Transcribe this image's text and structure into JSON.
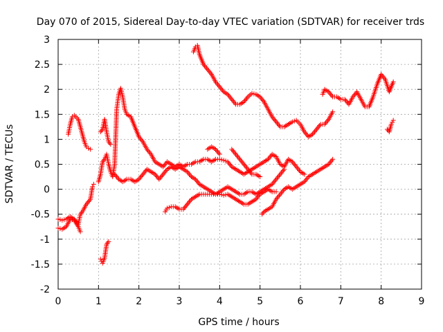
{
  "chart_data": {
    "type": "scatter",
    "title": "Day 070 of 2015, Sidereal Day-to-day VTEC variation (SDTVAR) for receiver trds",
    "xlabel": "GPS time / hours",
    "ylabel": "SDTVAR / TECUs",
    "xlim": [
      0,
      9
    ],
    "ylim": [
      -2,
      3
    ],
    "x_ticks": [
      0,
      1,
      2,
      3,
      4,
      5,
      6,
      7,
      8,
      9
    ],
    "y_ticks": [
      -2,
      -1.5,
      -1,
      -0.5,
      0,
      0.5,
      1,
      1.5,
      2,
      2.5,
      3
    ],
    "grid": true,
    "marker": "+",
    "color": "#ff0000",
    "series": [
      {
        "points": [
          [
            0.0,
            -0.6
          ],
          [
            0.1,
            -0.62
          ],
          [
            0.2,
            -0.6
          ],
          [
            0.3,
            -0.55
          ],
          [
            0.4,
            -0.6
          ],
          [
            0.5,
            -0.7
          ],
          [
            0.55,
            -0.5
          ],
          [
            0.6,
            -0.45
          ],
          [
            0.7,
            -0.3
          ],
          [
            0.75,
            -0.25
          ],
          [
            0.8,
            -0.2
          ],
          [
            0.85,
            0.05
          ],
          [
            0.88,
            0.1
          ]
        ]
      },
      {
        "points": [
          [
            0.0,
            -0.78
          ],
          [
            0.1,
            -0.8
          ],
          [
            0.2,
            -0.75
          ],
          [
            0.3,
            -0.6
          ],
          [
            0.4,
            -0.62
          ],
          [
            0.5,
            -0.75
          ],
          [
            0.55,
            -0.85
          ]
        ]
      },
      {
        "points": [
          [
            0.25,
            1.1
          ],
          [
            0.3,
            1.3
          ],
          [
            0.35,
            1.45
          ],
          [
            0.4,
            1.48
          ],
          [
            0.5,
            1.4
          ],
          [
            0.55,
            1.25
          ],
          [
            0.6,
            1.1
          ],
          [
            0.65,
            0.95
          ],
          [
            0.7,
            0.85
          ],
          [
            0.75,
            0.82
          ],
          [
            0.8,
            0.8
          ]
        ]
      },
      {
        "points": [
          [
            1.05,
            -1.4
          ],
          [
            1.1,
            -1.48
          ],
          [
            1.15,
            -1.38
          ],
          [
            1.2,
            -1.1
          ],
          [
            1.25,
            -1.05
          ]
        ]
      },
      {
        "points": [
          [
            1.05,
            1.15
          ],
          [
            1.1,
            1.2
          ],
          [
            1.15,
            1.4
          ],
          [
            1.2,
            1.15
          ],
          [
            1.25,
            0.95
          ],
          [
            1.3,
            0.9
          ]
        ]
      },
      {
        "points": [
          [
            1.0,
            0.15
          ],
          [
            1.05,
            0.3
          ],
          [
            1.1,
            0.55
          ],
          [
            1.15,
            0.6
          ],
          [
            1.2,
            0.7
          ],
          [
            1.25,
            0.5
          ],
          [
            1.3,
            0.35
          ],
          [
            1.35,
            0.25
          ],
          [
            1.4,
            0.5
          ],
          [
            1.45,
            1.6
          ],
          [
            1.5,
            1.9
          ],
          [
            1.55,
            2.02
          ],
          [
            1.6,
            1.85
          ],
          [
            1.65,
            1.6
          ],
          [
            1.7,
            1.5
          ],
          [
            1.8,
            1.45
          ],
          [
            1.9,
            1.25
          ],
          [
            2.0,
            1.05
          ],
          [
            2.1,
            0.95
          ],
          [
            2.2,
            0.8
          ],
          [
            2.3,
            0.7
          ],
          [
            2.4,
            0.55
          ],
          [
            2.5,
            0.5
          ],
          [
            2.6,
            0.45
          ],
          [
            2.7,
            0.55
          ],
          [
            2.8,
            0.5
          ],
          [
            2.9,
            0.45
          ],
          [
            3.0,
            0.5
          ],
          [
            3.1,
            0.45
          ],
          [
            3.2,
            0.5
          ],
          [
            3.3,
            0.5
          ],
          [
            3.4,
            0.55
          ],
          [
            3.5,
            0.55
          ],
          [
            3.6,
            0.6
          ],
          [
            3.7,
            0.6
          ],
          [
            3.8,
            0.55
          ],
          [
            3.9,
            0.6
          ],
          [
            4.0,
            0.6
          ],
          [
            4.1,
            0.58
          ],
          [
            4.2,
            0.55
          ],
          [
            4.3,
            0.45
          ],
          [
            4.4,
            0.4
          ],
          [
            4.5,
            0.35
          ],
          [
            4.6,
            0.3
          ],
          [
            4.7,
            0.35
          ],
          [
            4.8,
            0.4
          ],
          [
            4.9,
            0.45
          ],
          [
            5.0,
            0.5
          ],
          [
            5.1,
            0.55
          ],
          [
            5.2,
            0.6
          ],
          [
            5.3,
            0.7
          ],
          [
            5.4,
            0.65
          ],
          [
            5.5,
            0.5
          ],
          [
            5.6,
            0.45
          ],
          [
            5.7,
            0.6
          ],
          [
            5.8,
            0.55
          ],
          [
            5.9,
            0.45
          ],
          [
            6.0,
            0.35
          ],
          [
            6.1,
            0.3
          ]
        ]
      },
      {
        "points": [
          [
            1.4,
            0.3
          ],
          [
            1.5,
            0.2
          ],
          [
            1.6,
            0.15
          ],
          [
            1.7,
            0.2
          ],
          [
            1.8,
            0.2
          ],
          [
            1.9,
            0.15
          ],
          [
            2.0,
            0.2
          ],
          [
            2.1,
            0.3
          ],
          [
            2.2,
            0.4
          ],
          [
            2.3,
            0.35
          ],
          [
            2.4,
            0.3
          ],
          [
            2.5,
            0.2
          ],
          [
            2.6,
            0.3
          ],
          [
            2.7,
            0.4
          ],
          [
            2.8,
            0.45
          ],
          [
            2.9,
            0.4
          ],
          [
            3.0,
            0.45
          ],
          [
            3.1,
            0.4
          ],
          [
            3.2,
            0.35
          ],
          [
            3.3,
            0.25
          ],
          [
            3.4,
            0.2
          ],
          [
            3.5,
            0.1
          ],
          [
            3.6,
            0.05
          ],
          [
            3.7,
            0.0
          ],
          [
            3.8,
            -0.05
          ],
          [
            3.9,
            -0.1
          ],
          [
            4.0,
            -0.05
          ],
          [
            4.1,
            0.0
          ],
          [
            4.2,
            0.05
          ],
          [
            4.3,
            0.0
          ],
          [
            4.4,
            -0.05
          ],
          [
            4.5,
            -0.1
          ],
          [
            4.6,
            -0.1
          ],
          [
            4.7,
            -0.05
          ],
          [
            4.8,
            -0.05
          ],
          [
            4.9,
            -0.1
          ],
          [
            5.0,
            -0.05
          ],
          [
            5.1,
            0.0
          ],
          [
            5.2,
            0.05
          ],
          [
            5.3,
            0.1
          ],
          [
            5.4,
            0.2
          ],
          [
            5.5,
            0.3
          ],
          [
            5.6,
            0.4
          ]
        ]
      },
      {
        "points": [
          [
            3.35,
            2.75
          ],
          [
            3.4,
            2.85
          ],
          [
            3.45,
            2.88
          ],
          [
            3.5,
            2.7
          ],
          [
            3.6,
            2.5
          ],
          [
            3.7,
            2.4
          ],
          [
            3.8,
            2.3
          ],
          [
            3.9,
            2.15
          ],
          [
            4.0,
            2.05
          ],
          [
            4.1,
            1.95
          ],
          [
            4.2,
            1.9
          ],
          [
            4.3,
            1.8
          ],
          [
            4.4,
            1.7
          ],
          [
            4.5,
            1.7
          ],
          [
            4.6,
            1.75
          ],
          [
            4.7,
            1.85
          ],
          [
            4.8,
            1.92
          ],
          [
            4.9,
            1.9
          ],
          [
            5.0,
            1.85
          ],
          [
            5.1,
            1.75
          ],
          [
            5.2,
            1.6
          ],
          [
            5.3,
            1.45
          ],
          [
            5.4,
            1.35
          ],
          [
            5.5,
            1.25
          ],
          [
            5.6,
            1.25
          ],
          [
            5.7,
            1.3
          ],
          [
            5.8,
            1.35
          ],
          [
            5.9,
            1.38
          ],
          [
            6.0,
            1.3
          ],
          [
            6.1,
            1.15
          ],
          [
            6.2,
            1.05
          ],
          [
            6.3,
            1.1
          ],
          [
            6.4,
            1.2
          ],
          [
            6.5,
            1.3
          ],
          [
            6.6,
            1.3
          ],
          [
            6.7,
            1.4
          ],
          [
            6.8,
            1.55
          ]
        ]
      },
      {
        "points": [
          [
            2.65,
            -0.45
          ],
          [
            2.7,
            -0.38
          ],
          [
            2.8,
            -0.35
          ],
          [
            2.9,
            -0.35
          ],
          [
            3.0,
            -0.4
          ],
          [
            3.1,
            -0.4
          ],
          [
            3.2,
            -0.3
          ],
          [
            3.3,
            -0.2
          ],
          [
            3.4,
            -0.15
          ],
          [
            3.5,
            -0.1
          ],
          [
            3.6,
            -0.1
          ],
          [
            3.7,
            -0.1
          ],
          [
            3.8,
            -0.1
          ],
          [
            3.9,
            -0.1
          ],
          [
            4.0,
            -0.1
          ],
          [
            4.1,
            -0.12
          ],
          [
            4.2,
            -0.1
          ],
          [
            4.3,
            -0.15
          ],
          [
            4.4,
            -0.2
          ],
          [
            4.5,
            -0.25
          ],
          [
            4.6,
            -0.3
          ],
          [
            4.7,
            -0.3
          ],
          [
            4.8,
            -0.25
          ],
          [
            4.9,
            -0.2
          ],
          [
            5.0,
            -0.1
          ],
          [
            5.1,
            -0.05
          ],
          [
            5.2,
            0.0
          ],
          [
            5.3,
            -0.05
          ],
          [
            5.4,
            -0.05
          ]
        ]
      },
      {
        "points": [
          [
            3.7,
            0.8
          ],
          [
            3.8,
            0.85
          ],
          [
            3.9,
            0.8
          ],
          [
            4.0,
            0.7
          ]
        ]
      },
      {
        "points": [
          [
            4.3,
            0.8
          ],
          [
            4.4,
            0.7
          ],
          [
            4.5,
            0.6
          ],
          [
            4.6,
            0.5
          ],
          [
            4.7,
            0.4
          ],
          [
            4.8,
            0.3
          ],
          [
            4.9,
            0.3
          ],
          [
            5.0,
            0.25
          ]
        ]
      },
      {
        "points": [
          [
            5.05,
            -0.5
          ],
          [
            5.1,
            -0.45
          ],
          [
            5.2,
            -0.4
          ],
          [
            5.3,
            -0.35
          ],
          [
            5.4,
            -0.2
          ],
          [
            5.5,
            -0.1
          ],
          [
            5.6,
            0.0
          ],
          [
            5.7,
            0.05
          ],
          [
            5.8,
            0.0
          ],
          [
            5.9,
            0.05
          ],
          [
            6.0,
            0.1
          ],
          [
            6.1,
            0.15
          ],
          [
            6.2,
            0.25
          ],
          [
            6.3,
            0.3
          ],
          [
            6.4,
            0.35
          ],
          [
            6.5,
            0.4
          ],
          [
            6.6,
            0.45
          ],
          [
            6.7,
            0.5
          ],
          [
            6.8,
            0.6
          ]
        ]
      },
      {
        "points": [
          [
            6.55,
            1.9
          ],
          [
            6.6,
            2.0
          ],
          [
            6.7,
            1.95
          ],
          [
            6.8,
            1.85
          ],
          [
            6.9,
            1.85
          ],
          [
            7.0,
            1.8
          ],
          [
            7.1,
            1.8
          ],
          [
            7.2,
            1.7
          ],
          [
            7.3,
            1.85
          ],
          [
            7.4,
            1.95
          ],
          [
            7.5,
            1.8
          ],
          [
            7.6,
            1.65
          ],
          [
            7.7,
            1.65
          ],
          [
            7.8,
            1.85
          ],
          [
            7.9,
            2.1
          ],
          [
            8.0,
            2.3
          ],
          [
            8.1,
            2.2
          ],
          [
            8.2,
            1.95
          ],
          [
            8.3,
            2.15
          ]
        ]
      },
      {
        "points": [
          [
            8.15,
            1.2
          ],
          [
            8.2,
            1.15
          ],
          [
            8.25,
            1.3
          ],
          [
            8.3,
            1.38
          ]
        ]
      }
    ]
  }
}
